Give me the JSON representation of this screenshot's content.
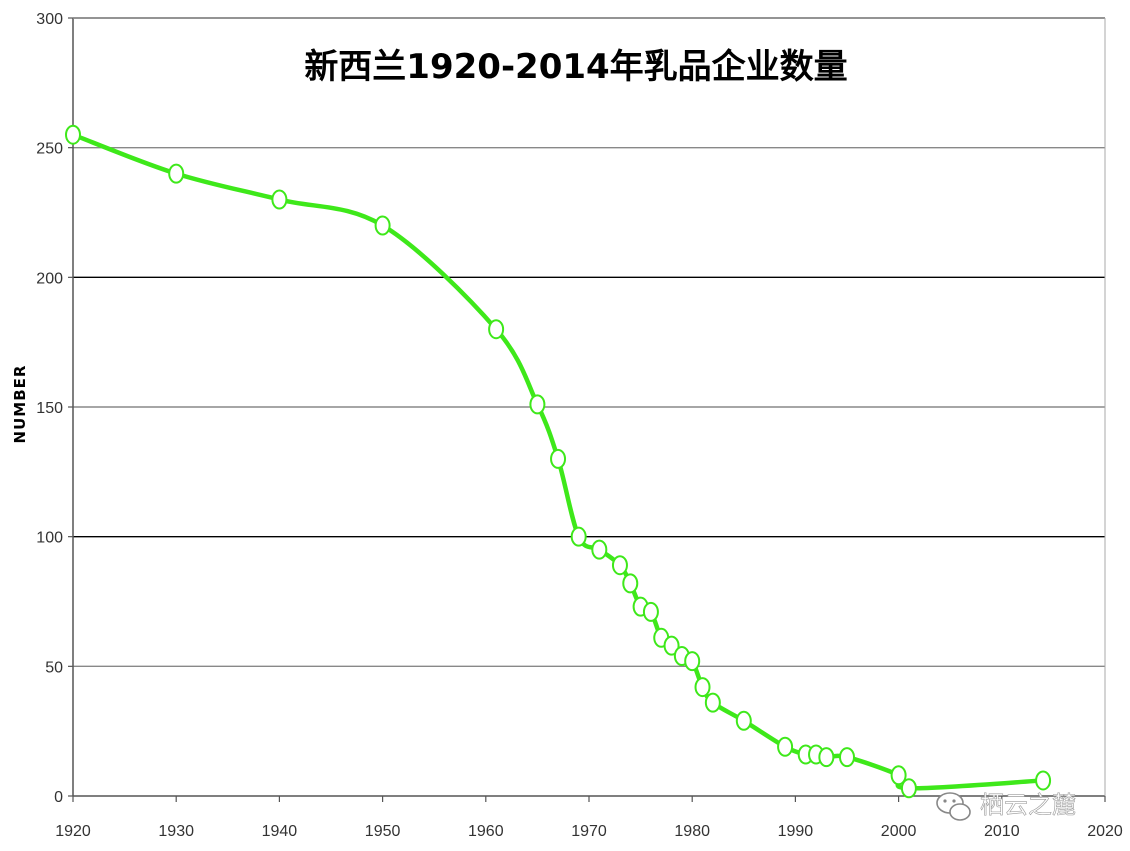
{
  "chart_data": {
    "type": "line",
    "title": "新西兰1920-2014年乳品企业数量",
    "xlabel": "",
    "ylabel": "NUMBER",
    "xlim": [
      1920,
      2020
    ],
    "ylim": [
      0,
      300
    ],
    "x_ticks": [
      "1920",
      "1930",
      "1940",
      "1950",
      "1960",
      "1970",
      "1980",
      "1990",
      "2000",
      "2010",
      "2020"
    ],
    "y_ticks": [
      "0",
      "50",
      "100",
      "150",
      "200",
      "250",
      "300"
    ],
    "grid": true,
    "legend": "none",
    "line_color": "#3ee81a",
    "series": [
      {
        "x": [
          1920,
          1930,
          1940,
          1950,
          1961,
          1965,
          1967,
          1969,
          1971,
          1973,
          1974,
          1975,
          1976,
          1977,
          1978,
          1979,
          1980,
          1981,
          1982,
          1985,
          1989,
          1991,
          1992,
          1993,
          1995,
          2000,
          2001,
          2014
        ],
        "y": [
          255,
          240,
          230,
          220,
          180,
          151,
          130,
          100,
          95,
          89,
          82,
          73,
          71,
          61,
          58,
          54,
          52,
          42,
          36,
          29,
          19,
          16,
          16,
          15,
          15,
          8,
          3,
          6
        ]
      }
    ]
  },
  "watermark": {
    "text": "栖云之麓",
    "icon": "wechat-icon"
  }
}
